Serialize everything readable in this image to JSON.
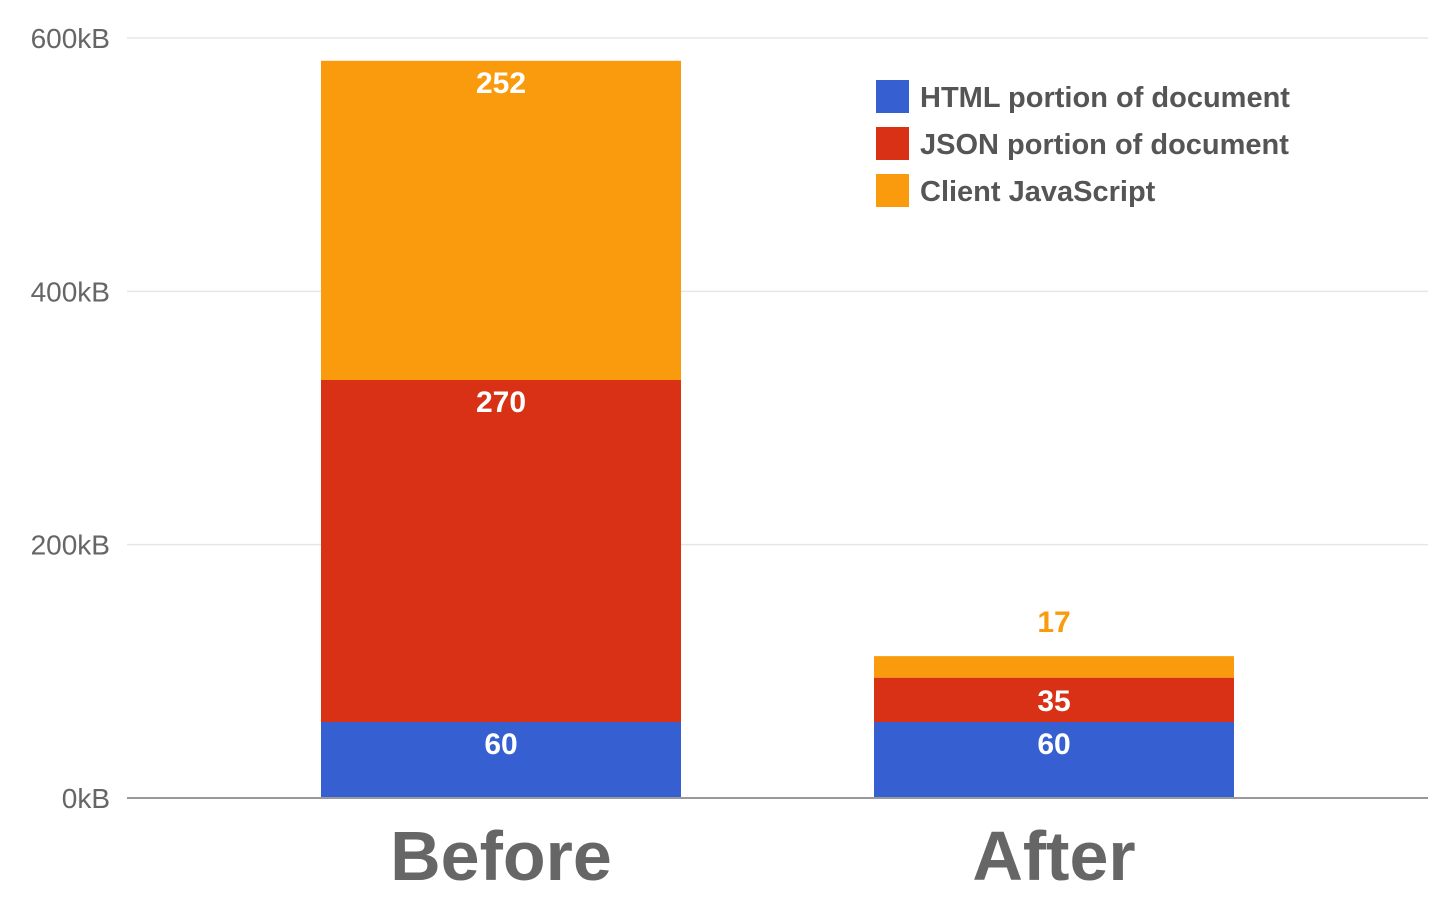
{
  "chart_data": {
    "type": "bar",
    "stacked": true,
    "title": "",
    "xlabel": "",
    "ylabel": "",
    "categories": [
      "Before",
      "After"
    ],
    "ylim": [
      0,
      600
    ],
    "yticks": [
      {
        "value": 0,
        "label": "0kB"
      },
      {
        "value": 200,
        "label": "200kB"
      },
      {
        "value": 400,
        "label": "400kB"
      },
      {
        "value": 600,
        "label": "600kB"
      }
    ],
    "grid": true,
    "legend_position": "top-right",
    "series": [
      {
        "name": "HTML portion of document",
        "color": "#3660D1",
        "label_color": "#ffffff",
        "values": [
          60,
          60
        ]
      },
      {
        "name": "JSON portion of document",
        "color": "#D93116",
        "label_color": "#ffffff",
        "values": [
          270,
          35
        ]
      },
      {
        "name": "Client JavaScript",
        "color": "#F99B0C",
        "label_color": "#ffffff",
        "values": [
          252,
          17
        ]
      }
    ]
  }
}
